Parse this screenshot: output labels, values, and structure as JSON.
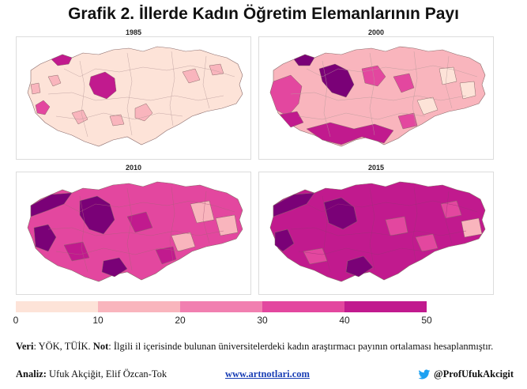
{
  "title": "Grafik 2. İllerde Kadın Öğretim Elemanlarının Payı",
  "panels": [
    {
      "year": "1985"
    },
    {
      "year": "2000"
    },
    {
      "year": "2010"
    },
    {
      "year": "2015"
    }
  ],
  "legend": {
    "ticks": [
      "0",
      "10",
      "20",
      "30",
      "40",
      "50"
    ],
    "colors": [
      "#fde3d8",
      "#f9b5bd",
      "#f17fb0",
      "#e3479f",
      "#c11a8e",
      "#7a0177"
    ]
  },
  "note": {
    "veri_label": "Veri",
    "veri_text": ": YÖK, TÜİK. ",
    "not_label": "Not",
    "not_text": ": İlgili il içerisinde bulunan üniversitelerdeki kadın araştırmacı payının ortalaması hesaplanmıştır."
  },
  "footer": {
    "analysis_label": "Analiz:",
    "analysis_names": " Ufuk Akçiğit, Elif Özcan-Tok",
    "website": "www.artnotlari.com",
    "twitter_handle": "@ProfUfukAkcigit"
  }
}
